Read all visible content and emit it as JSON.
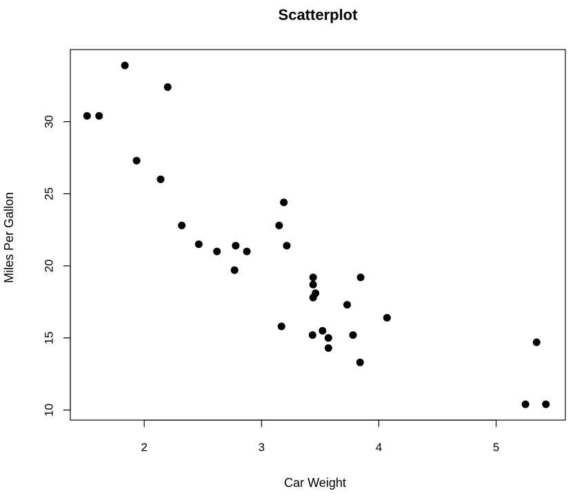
{
  "chart_data": {
    "type": "scatter",
    "title": "Scatterplot",
    "xlabel": "Car Weight",
    "ylabel": "Miles Per Gallon",
    "xlim": [
      1.37,
      5.59
    ],
    "ylim": [
      9.3,
      35.0
    ],
    "x_ticks": [
      2,
      3,
      4,
      5
    ],
    "y_ticks": [
      10,
      15,
      20,
      25,
      30
    ],
    "grid": false,
    "legend": "none",
    "colors": {
      "point": "#000000",
      "axis": "#000000",
      "background": "#ffffff"
    },
    "points": [
      {
        "x": 1.513,
        "y": 30.4
      },
      {
        "x": 1.615,
        "y": 30.4
      },
      {
        "x": 1.835,
        "y": 33.9
      },
      {
        "x": 1.935,
        "y": 27.3
      },
      {
        "x": 2.14,
        "y": 26.0
      },
      {
        "x": 2.2,
        "y": 32.4
      },
      {
        "x": 2.32,
        "y": 22.8
      },
      {
        "x": 2.465,
        "y": 21.5
      },
      {
        "x": 2.62,
        "y": 21.0
      },
      {
        "x": 2.77,
        "y": 19.7
      },
      {
        "x": 2.78,
        "y": 21.4
      },
      {
        "x": 2.875,
        "y": 21.0
      },
      {
        "x": 3.15,
        "y": 22.8
      },
      {
        "x": 3.17,
        "y": 15.8
      },
      {
        "x": 3.19,
        "y": 24.4
      },
      {
        "x": 3.215,
        "y": 21.4
      },
      {
        "x": 3.435,
        "y": 15.2
      },
      {
        "x": 3.44,
        "y": 18.7
      },
      {
        "x": 3.44,
        "y": 19.2
      },
      {
        "x": 3.44,
        "y": 17.8
      },
      {
        "x": 3.46,
        "y": 18.1
      },
      {
        "x": 3.52,
        "y": 15.5
      },
      {
        "x": 3.57,
        "y": 15.0
      },
      {
        "x": 3.57,
        "y": 14.3
      },
      {
        "x": 3.73,
        "y": 17.3
      },
      {
        "x": 3.78,
        "y": 15.2
      },
      {
        "x": 3.84,
        "y": 13.3
      },
      {
        "x": 3.845,
        "y": 19.2
      },
      {
        "x": 4.07,
        "y": 16.4
      },
      {
        "x": 5.25,
        "y": 10.4
      },
      {
        "x": 5.345,
        "y": 14.7
      },
      {
        "x": 5.424,
        "y": 10.4
      }
    ]
  }
}
